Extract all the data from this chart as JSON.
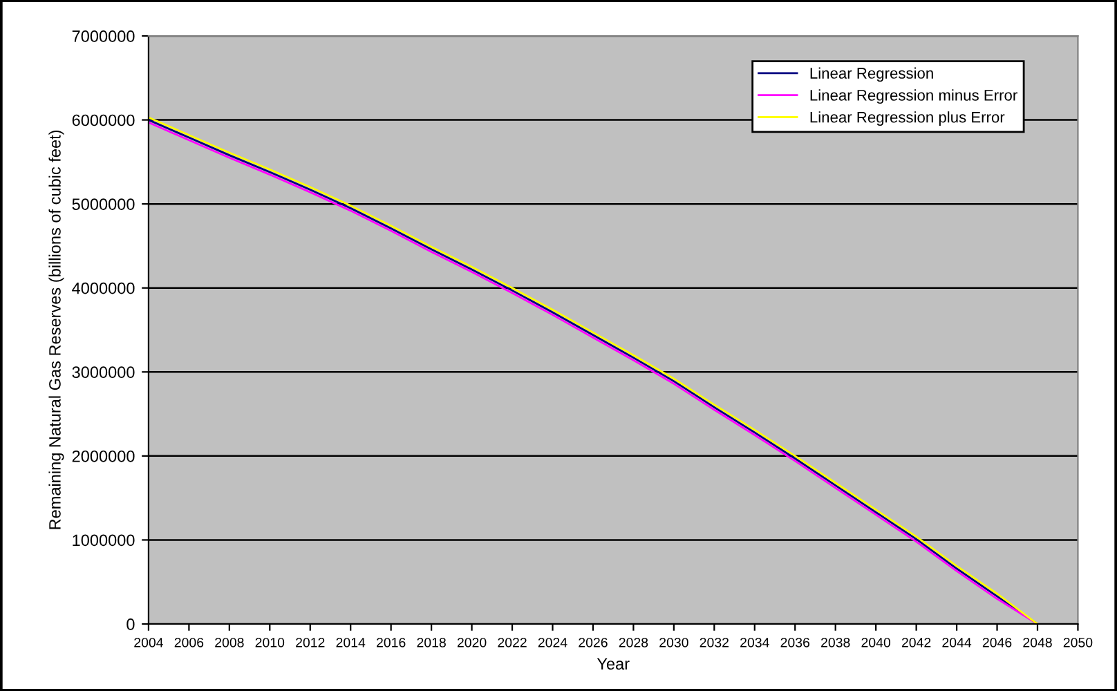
{
  "chart_data": {
    "type": "line",
    "xlabel": "Year",
    "ylabel": "Remaining Natural Gas Reserves (billions of cubic feet)",
    "x": [
      2004,
      2006,
      2008,
      2010,
      2012,
      2014,
      2016,
      2018,
      2020,
      2022,
      2024,
      2026,
      2028,
      2030,
      2032,
      2034,
      2036,
      2038,
      2040,
      2042,
      2044,
      2046,
      2048
    ],
    "series": [
      {
        "name": "Linear Regression",
        "color": "#000080",
        "values": [
          6000000,
          5790000,
          5580000,
          5380000,
          5170000,
          4950000,
          4710000,
          4460000,
          4220000,
          3970000,
          3710000,
          3440000,
          3170000,
          2890000,
          2580000,
          2280000,
          1970000,
          1650000,
          1330000,
          1010000,
          660000,
          330000,
          0
        ]
      },
      {
        "name": "Linear Regression minus Error",
        "color": "#ff00ff",
        "values": [
          5970000,
          5760000,
          5550000,
          5350000,
          5140000,
          4920000,
          4680000,
          4430000,
          4190000,
          3940000,
          3680000,
          3410000,
          3140000,
          2860000,
          2550000,
          2250000,
          1940000,
          1620000,
          1300000,
          980000,
          630000,
          300000,
          0
        ]
      },
      {
        "name": "Linear Regression plus Error",
        "color": "#ffff00",
        "values": [
          6030000,
          5820000,
          5610000,
          5410000,
          5200000,
          4980000,
          4740000,
          4490000,
          4250000,
          4000000,
          3740000,
          3470000,
          3200000,
          2920000,
          2610000,
          2310000,
          2000000,
          1680000,
          1360000,
          1040000,
          690000,
          360000,
          0
        ]
      }
    ],
    "xlim": [
      2004,
      2050
    ],
    "xticks": [
      2004,
      2006,
      2008,
      2010,
      2012,
      2014,
      2016,
      2018,
      2020,
      2022,
      2024,
      2026,
      2028,
      2030,
      2032,
      2034,
      2036,
      2038,
      2040,
      2042,
      2044,
      2046,
      2048,
      2050
    ],
    "ylim": [
      0,
      7000000
    ],
    "yticks": [
      0,
      1000000,
      2000000,
      3000000,
      4000000,
      5000000,
      6000000,
      7000000
    ],
    "grid": "y",
    "legend": "top right",
    "marker": "none",
    "line_style": "solid"
  }
}
